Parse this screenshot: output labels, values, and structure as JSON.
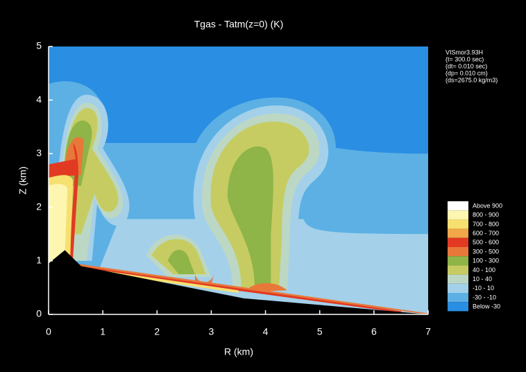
{
  "chart_data": {
    "type": "contour",
    "title": "Tgas - Tatm(z=0) (K)",
    "x_label": "R (km)",
    "y_label": "Z (km)",
    "xlim": [
      0,
      7
    ],
    "xticks": [
      0,
      1,
      2,
      3,
      4,
      5,
      6,
      7
    ],
    "ylim": [
      0,
      5
    ],
    "yticks": [
      0,
      1,
      2,
      3,
      4,
      5
    ],
    "annotation": [
      "VISmor3.93H",
      "(t= 300.0 sec)",
      "(dt= 0.010 sec)",
      "(dp= 0.010 cm)",
      "(ds=2675.0 kg/m3)"
    ],
    "levels": [
      {
        "label": "Above  900",
        "color": "#ffffff"
      },
      {
        "label": "800 - 900",
        "color": "#fdf6b0"
      },
      {
        "label": "700 - 800",
        "color": "#f6e070"
      },
      {
        "label": "600 - 700",
        "color": "#f0a848"
      },
      {
        "label": "500 - 600",
        "color": "#e23a22"
      },
      {
        "label": "300 - 500",
        "color": "#e8783a"
      },
      {
        "label": "100 - 300",
        "color": "#8fb448"
      },
      {
        "label": "40 - 100",
        "color": "#c6cc62"
      },
      {
        "label": "10 - 40",
        "color": "#bcd8c4"
      },
      {
        "label": "-10 - 10",
        "color": "#a4d0ea"
      },
      {
        "label": "-30 - -10",
        "color": "#5cb0e4"
      },
      {
        "label": "Below -30",
        "color": "#2a8ee2"
      }
    ]
  }
}
